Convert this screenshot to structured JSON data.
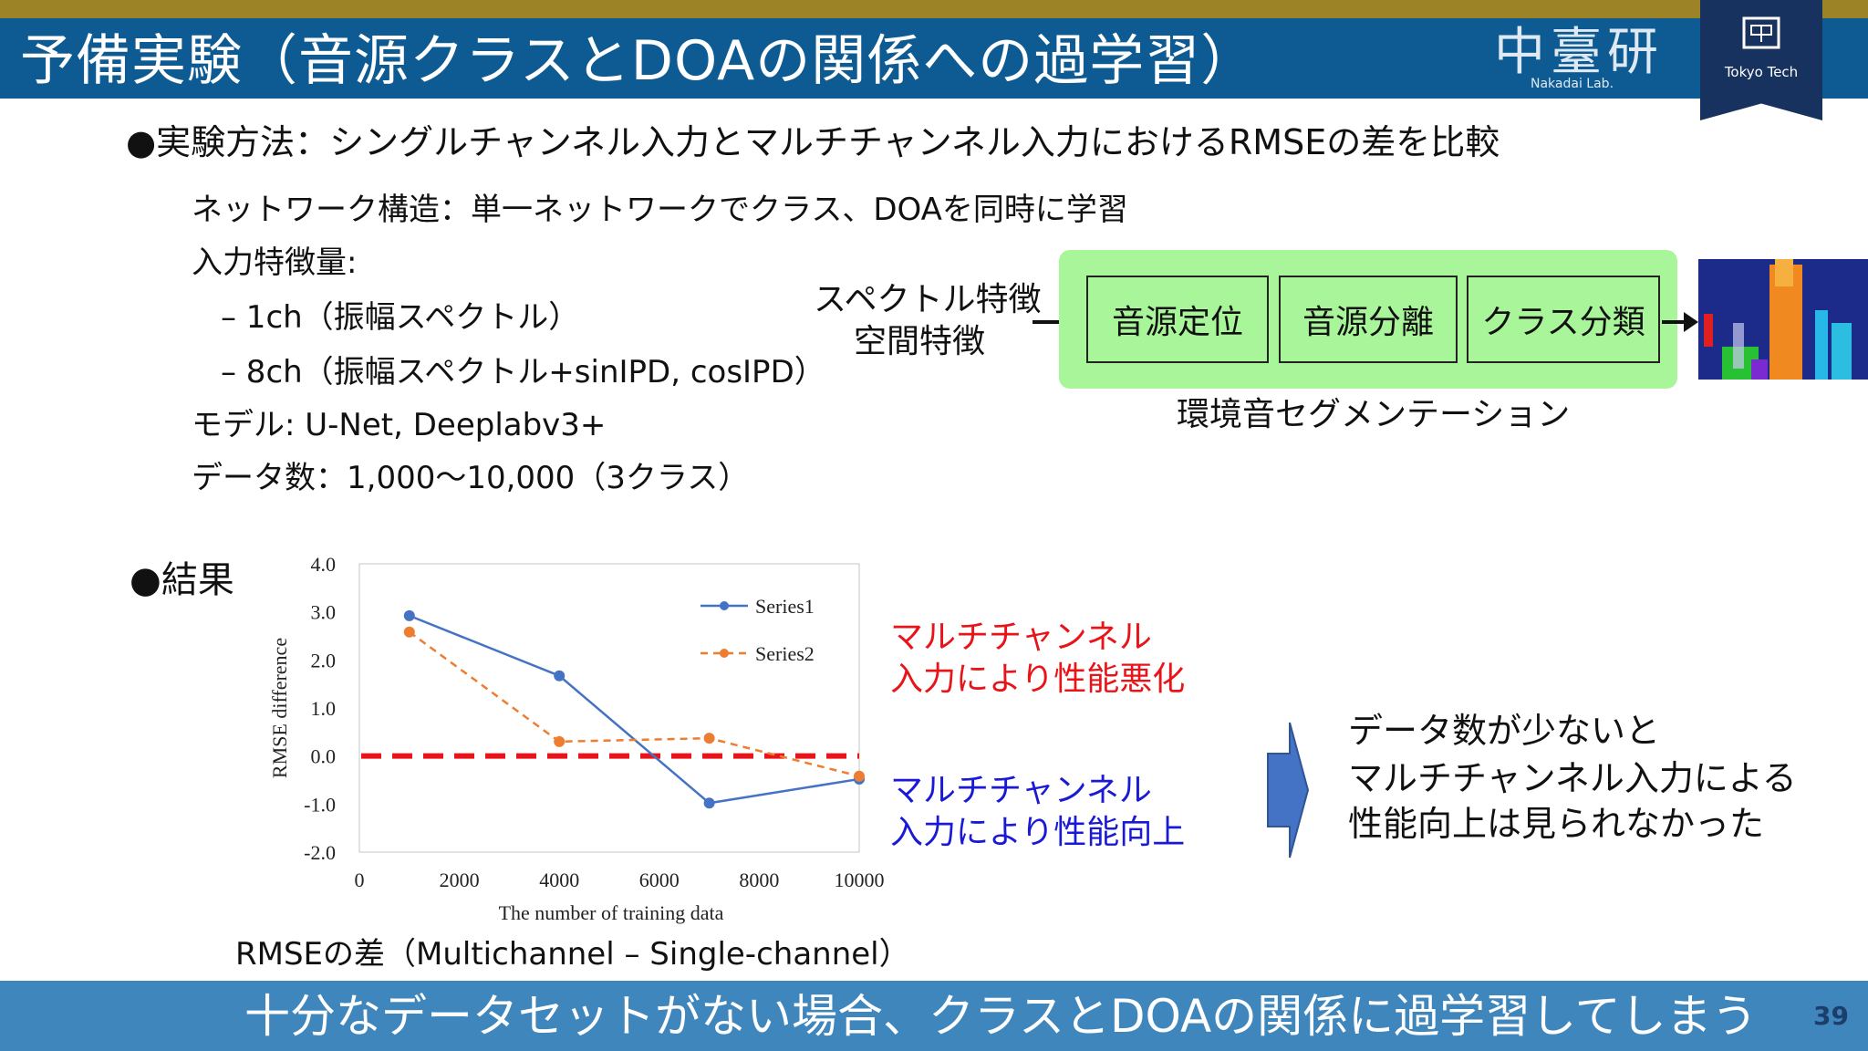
{
  "title": "予備実験（音源クラスとDOAの関係への過学習）",
  "logo": {
    "kanji": "中臺研",
    "lab": "Nakadai Lab.",
    "institute": "Tokyo Tech"
  },
  "method": {
    "heading": "●実験方法：シングルチャンネル入力とマルチチャンネル入力におけるRMSEの差を比較",
    "items": [
      "ネットワーク構造：単一ネットワークでクラス、DOAを同時に学習",
      "入力特徴量:",
      "– 1ch（振幅スペクトル）",
      "– 8ch（振幅スペクトル+sinIPD, cosIPD）",
      "モデル: U-Net, Deeplabv3+",
      "データ数：1,000～10,000（3クラス）"
    ]
  },
  "diagram": {
    "input_line1": "スペクトル特徴",
    "input_line2": "空間特徴",
    "blocks": [
      "音源定位",
      "音源分離",
      "クラス分類"
    ],
    "caption": "環境音セグメンテーション"
  },
  "results": {
    "heading": "●結果"
  },
  "chart_data": {
    "type": "line",
    "xlabel": "The number of training data",
    "ylabel": "RMSE difference",
    "xlim": [
      0,
      10000
    ],
    "ylim": [
      -2.0,
      4.0
    ],
    "x_ticks": [
      "0",
      "2000",
      "4000",
      "6000",
      "8000",
      "10000"
    ],
    "y_ticks": [
      "4.0",
      "3.0",
      "2.0",
      "1.0",
      "0.0",
      "-1.0",
      "-2.0"
    ],
    "legend_position": "top-right",
    "series": [
      {
        "name": "Series1",
        "color": "#4472c4",
        "style": "solid",
        "x": [
          1000,
          4000,
          7000,
          10000
        ],
        "y": [
          2.92,
          1.67,
          -0.98,
          -0.48
        ]
      },
      {
        "name": "Series2",
        "color": "#ed7d31",
        "style": "dashed",
        "x": [
          1000,
          4000,
          7000,
          10000
        ],
        "y": [
          2.58,
          0.3,
          0.37,
          -0.42
        ]
      }
    ],
    "reference_line": {
      "y": 0.0,
      "color": "#e8141a"
    }
  },
  "annotations": {
    "worse_line1": "マルチチャンネル",
    "worse_line2": "入力により性能悪化",
    "better_line1": "マルチチャンネル",
    "better_line2": "入力により性能向上"
  },
  "chart_caption": "RMSEの差（Multichannel – Single-channel）",
  "conclusion": {
    "line1": "データ数が少ないと",
    "line2": "マルチチャンネル入力による",
    "line3": "性能向上は見られなかった"
  },
  "bottom_text": "十分なデータセットがない場合、クラスとDOAの関係に過学習してしまう",
  "page_number": "39"
}
